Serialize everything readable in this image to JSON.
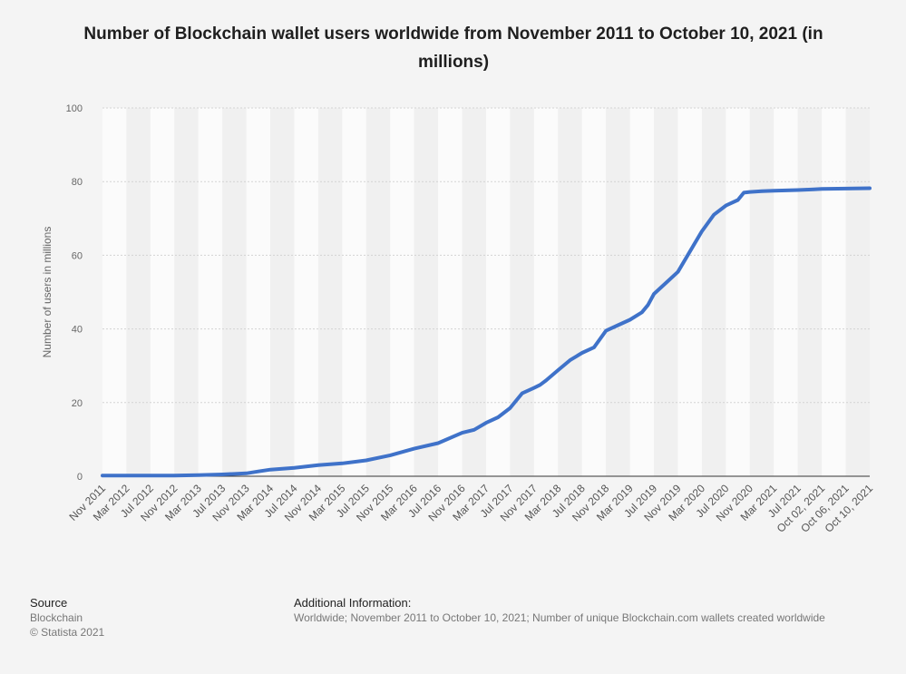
{
  "title": "Number of Blockchain wallet users worldwide from November 2011 to October 10, 2021 (in millions)",
  "footer": {
    "source_heading": "Source",
    "source_name": "Blockchain",
    "copyright": "© Statista 2021",
    "info_heading": "Additional Information:",
    "info_text": "Worldwide; November 2011 to October 10, 2021; Number of unique Blockchain.com wallets created worldwide"
  },
  "colors": {
    "line": "#3f72c9",
    "grid": "#d3d3d3",
    "band_light": "#fbfbfb",
    "band_dark": "#f0f0f0"
  },
  "chart_data": {
    "type": "line",
    "title": "Number of Blockchain wallet users worldwide from November 2011 to October 10, 2021 (in millions)",
    "xlabel": "",
    "ylabel": "Number of users in millions",
    "ylim": [
      0,
      100
    ],
    "yticks": [
      0,
      20,
      40,
      60,
      80,
      100
    ],
    "grid": true,
    "legend": "none",
    "categories": [
      "Nov 2011",
      "Mar 2012",
      "Jul 2012",
      "Nov 2012",
      "Mar 2013",
      "Jul 2013",
      "Nov 2013",
      "Mar 2014",
      "Jul 2014",
      "Nov 2014",
      "Mar 2015",
      "Jul 2015",
      "Nov 2015",
      "Mar 2016",
      "Jul 2016",
      "Nov 2016",
      "Mar 2017",
      "Jul 2017",
      "Nov 2017",
      "Mar 2018",
      "Jul 2018",
      "Nov 2018",
      "Mar 2019",
      "Jul 2019",
      "Nov 2019",
      "Mar 2020",
      "Jul 2020",
      "Nov 2020",
      "Mar 2021",
      "Jul 2021",
      "Oct 02, 2021",
      "Oct 06, 2021",
      "Oct 10, 2021"
    ],
    "series": [
      {
        "x": [
          "Nov 2011",
          "Mar 2012",
          "Jul 2012",
          "Nov 2012",
          "Mar 2013",
          "Jul 2013",
          "Nov 2013",
          "Jan 2014",
          "Mar 2014",
          "Jul 2014",
          "Nov 2014",
          "Mar 2015",
          "Jul 2015",
          "Nov 2015",
          "Mar 2016",
          "Jul 2016",
          "Nov 2016",
          "Jan 2017",
          "Mar 2017",
          "May 2017",
          "Jul 2017",
          "Sep 2017",
          "Nov 2017",
          "Dec 2017",
          "Jan 2018",
          "Mar 2018",
          "May 2018",
          "Jul 2018",
          "Sep 2018",
          "Nov 2018",
          "Jan 2019",
          "Mar 2019",
          "May 2019",
          "Jun 2019",
          "Jul 2019",
          "Sep 2019",
          "Nov 2019",
          "Jan 2020",
          "Mar 2020",
          "May 2020",
          "Jul 2020",
          "Sep 2020",
          "Oct 2020",
          "Nov 2020",
          "Jan 2021",
          "Mar 2021",
          "May 2021",
          "Jul 2021",
          "Aug 2021",
          "Sep 2021",
          "Oct 02, 2021",
          "Oct 06, 2021",
          "Oct 10, 2021"
        ],
        "values": [
          0.2,
          0.2,
          0.2,
          0.2,
          0.3,
          0.5,
          0.8,
          1.3,
          1.8,
          2.3,
          3.0,
          3.5,
          4.3,
          5.7,
          7.5,
          9.0,
          11.8,
          12.6,
          14.5,
          16.0,
          18.5,
          22.5,
          24.0,
          24.8,
          26.0,
          28.8,
          31.5,
          33.5,
          35.0,
          39.5,
          41.0,
          42.5,
          44.5,
          46.5,
          49.5,
          52.5,
          55.5,
          61.0,
          66.5,
          71.0,
          73.5,
          75.0,
          77.0,
          77.2,
          77.4,
          77.5,
          77.6,
          77.7,
          77.8,
          77.9,
          78.0,
          78.1,
          78.2
        ]
      }
    ]
  }
}
